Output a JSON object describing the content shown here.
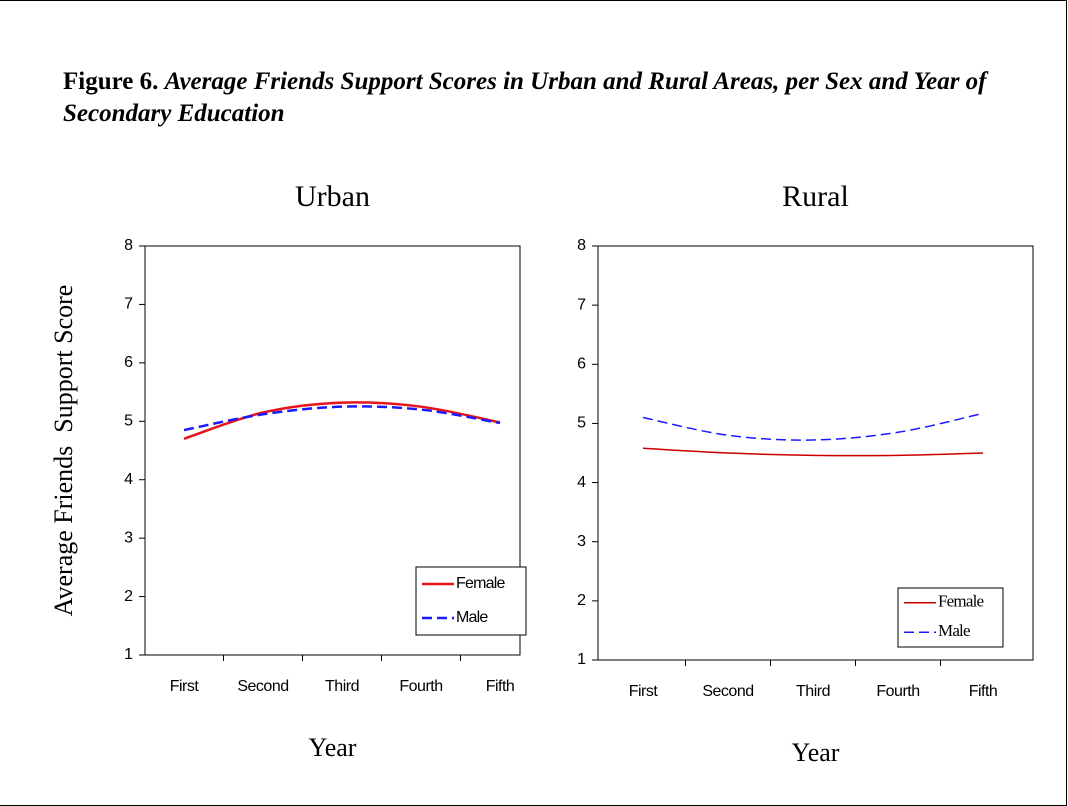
{
  "figure": {
    "label": "Figure 6.",
    "caption": "Average Friends Support Scores in Urban and Rural Areas, per Sex and Year of Secondary Education"
  },
  "chart_data": [
    {
      "type": "line",
      "title": "Urban",
      "x_label": "Year",
      "y_label": "Average Friends  Support Score",
      "categories": [
        "First",
        "Second",
        "Third",
        "Fourth",
        "Fifth"
      ],
      "series": [
        {
          "name": "Female",
          "color": "#e8141b",
          "dash": false,
          "values": [
            4.7,
            5.15,
            5.32,
            5.25,
            4.98
          ]
        },
        {
          "name": "Male",
          "color": "#1a1aff",
          "dash": true,
          "values": [
            4.85,
            5.12,
            5.25,
            5.2,
            4.97
          ]
        }
      ],
      "ylim": [
        1,
        8
      ],
      "yticks": [
        1,
        2,
        3,
        4,
        5,
        6,
        7,
        8
      ],
      "legend": "lower right"
    },
    {
      "type": "line",
      "title": "Rural",
      "x_label": "Year",
      "categories": [
        "First",
        "Second",
        "Third",
        "Fourth",
        "Fifth"
      ],
      "series": [
        {
          "name": "Female",
          "color": "#cc0000",
          "dash": false,
          "values": [
            4.58,
            4.5,
            4.46,
            4.46,
            4.5
          ]
        },
        {
          "name": "Male",
          "color": "#1a1aff",
          "dash": true,
          "values": [
            5.1,
            4.8,
            4.72,
            4.85,
            5.17
          ]
        }
      ],
      "ylim": [
        1,
        8
      ],
      "yticks": [
        1,
        2,
        3,
        4,
        5,
        6,
        7,
        8
      ],
      "legend": "lower right"
    }
  ]
}
